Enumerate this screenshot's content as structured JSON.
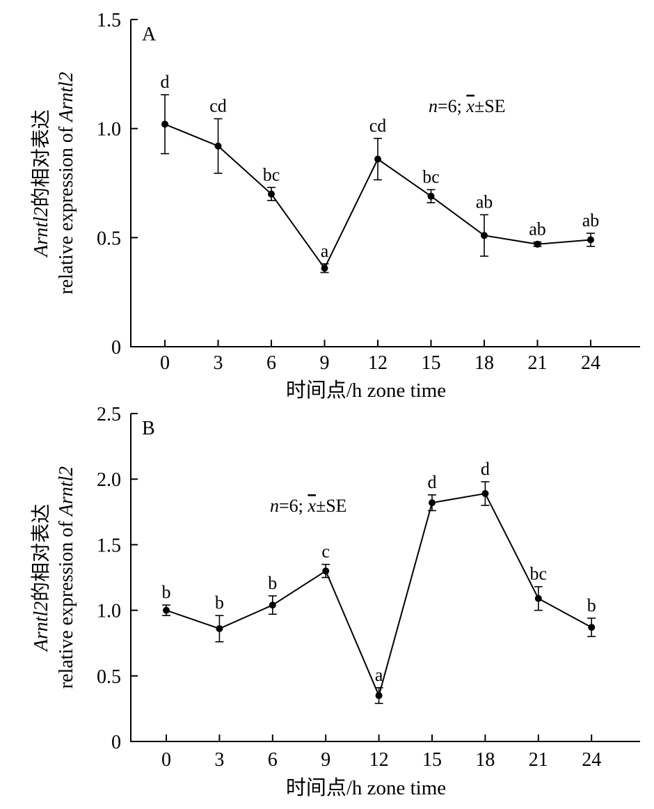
{
  "chart_data": [
    {
      "type": "line",
      "panel_label": "A",
      "x": [
        0,
        3,
        6,
        9,
        12,
        15,
        18,
        21,
        24
      ],
      "xticks": [
        "0",
        "3",
        "6",
        "9",
        "12",
        "15",
        "18",
        "21",
        "24"
      ],
      "xlabel": "时间点/h zone time",
      "ylabel_line1_italic": "Arntl2",
      "ylabel_line1_rest": "的相对表达",
      "ylabel_line2_text": "relative expression of ",
      "ylabel_line2_italic": "Arntl2",
      "ylim": [
        0,
        1.5
      ],
      "yticks": [
        "0",
        "0.5",
        "1.0",
        "1.5"
      ],
      "ytick_values": [
        0,
        0.5,
        1.0,
        1.5
      ],
      "series": [
        {
          "values": [
            1.02,
            0.92,
            0.7,
            0.36,
            0.86,
            0.69,
            0.51,
            0.47,
            0.49
          ],
          "errors": [
            0.135,
            0.125,
            0.03,
            0.02,
            0.095,
            0.03,
            0.095,
            0.01,
            0.03
          ],
          "labels": [
            "d",
            "cd",
            "bc",
            "a",
            "cd",
            "bc",
            "ab",
            "ab",
            "ab"
          ]
        }
      ],
      "annotation": {
        "n_italic": "n",
        "rest": "=6; ",
        "xbar": "x",
        "pm": "±SE",
        "position": "top-right"
      },
      "grid": false
    },
    {
      "type": "line",
      "panel_label": "B",
      "x": [
        0,
        3,
        6,
        9,
        12,
        15,
        18,
        21,
        24
      ],
      "xticks": [
        "0",
        "3",
        "6",
        "9",
        "12",
        "15",
        "18",
        "21",
        "24"
      ],
      "xlabel": "时间点/h zone time",
      "ylabel_line1_italic": "Arntl2",
      "ylabel_line1_rest": "的相对表达",
      "ylabel_line2_text": "relative expression of ",
      "ylabel_line2_italic": "Arntl2",
      "ylim": [
        0,
        2.5
      ],
      "yticks": [
        "0",
        "0.5",
        "1.0",
        "1.5",
        "2.0",
        "2.5"
      ],
      "ytick_values": [
        0,
        0.5,
        1.0,
        1.5,
        2.0,
        2.5
      ],
      "series": [
        {
          "values": [
            1.0,
            0.86,
            1.04,
            1.3,
            0.35,
            1.82,
            1.89,
            1.09,
            0.87
          ],
          "errors": [
            0.04,
            0.1,
            0.07,
            0.05,
            0.06,
            0.06,
            0.09,
            0.09,
            0.07
          ],
          "labels": [
            "b",
            "b",
            "b",
            "c",
            "a",
            "d",
            "d",
            "bc",
            "b"
          ]
        }
      ],
      "annotation": {
        "n_italic": "n",
        "rest": "=6; ",
        "xbar": "x",
        "pm": "±SE",
        "position": "top-center"
      },
      "grid": false
    }
  ]
}
